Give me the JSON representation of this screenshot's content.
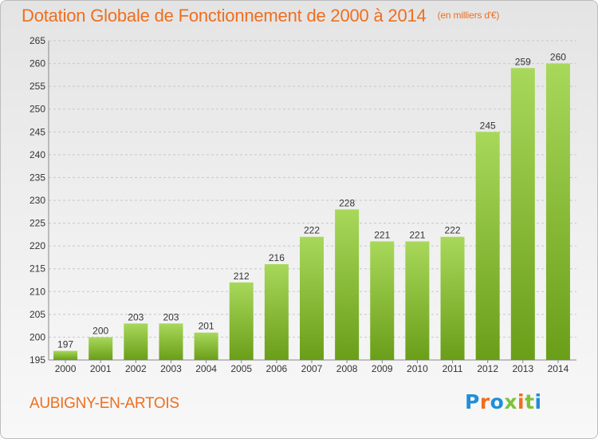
{
  "header": {
    "title": "Dotation Globale de Fonctionnement de 2000 à 2014",
    "unit": "(en milliers d'€)"
  },
  "footer": {
    "commune": "AUBIGNY-EN-ARTOIS",
    "logo_text": "Proxiti",
    "logo_colors": [
      "#1f8fd6",
      "#ef6e1e",
      "#1f8fd6",
      "#7cc23a",
      "#ef6e1e",
      "#7cc23a",
      "#1f8fd6"
    ]
  },
  "colors": {
    "text_accent": "#ef6e1e",
    "bar_top": "#a8d85a",
    "bar_bottom": "#6a9e19",
    "grid": "#c8c8c8"
  },
  "chart_data": {
    "type": "bar",
    "categories": [
      "2000",
      "2001",
      "2002",
      "2003",
      "2004",
      "2005",
      "2006",
      "2007",
      "2008",
      "2009",
      "2010",
      "2011",
      "2012",
      "2013",
      "2014"
    ],
    "values": [
      197,
      200,
      203,
      203,
      201,
      212,
      216,
      222,
      228,
      221,
      221,
      222,
      245,
      259,
      260
    ],
    "ylim": [
      195,
      265
    ],
    "yticks": [
      195,
      200,
      205,
      210,
      215,
      220,
      225,
      230,
      235,
      240,
      245,
      250,
      255,
      260,
      265
    ],
    "grid": true,
    "data_labels": true
  }
}
